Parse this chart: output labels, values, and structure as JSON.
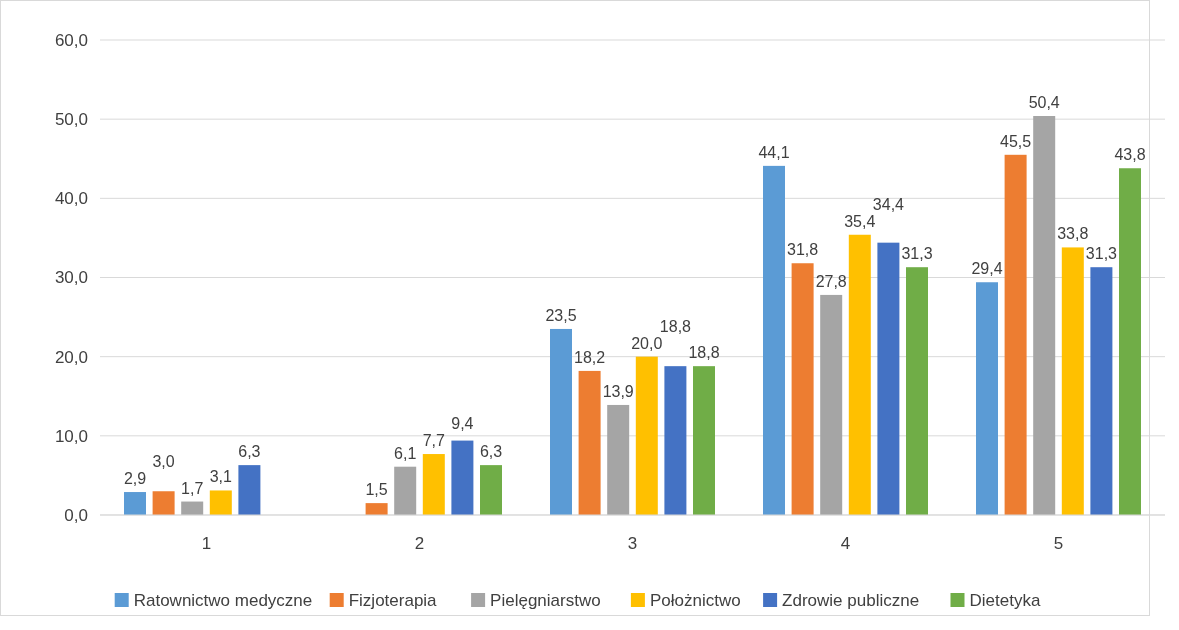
{
  "chart_data": {
    "type": "bar",
    "categories": [
      "1",
      "2",
      "3",
      "4",
      "5"
    ],
    "series": [
      {
        "name": "Ratownictwo medyczne",
        "color": "#5b9bd5",
        "values": [
          2.9,
          null,
          23.5,
          44.1,
          29.4
        ],
        "value_labels": [
          "2,9",
          null,
          "23,5",
          "44,1",
          "29,4"
        ]
      },
      {
        "name": "Fizjoterapia",
        "color": "#ed7d31",
        "values": [
          3.0,
          1.5,
          18.2,
          31.8,
          45.5
        ],
        "value_labels": [
          "3,0",
          "1,5",
          "18,2",
          "31,8",
          "45,5"
        ]
      },
      {
        "name": "Pielęgniarstwo",
        "color": "#a5a5a5",
        "values": [
          1.7,
          6.1,
          13.9,
          27.8,
          50.4
        ],
        "value_labels": [
          "1,7",
          "6,1",
          "13,9",
          "27,8",
          "50,4"
        ]
      },
      {
        "name": "Położnictwo",
        "color": "#ffc000",
        "values": [
          3.1,
          7.7,
          20.0,
          35.4,
          33.8
        ],
        "value_labels": [
          "3,1",
          "7,7",
          "20,0",
          "35,4",
          "33,8"
        ]
      },
      {
        "name": "Zdrowie publiczne",
        "color": "#4472c4",
        "values": [
          6.3,
          9.4,
          18.8,
          34.4,
          31.3
        ],
        "value_labels": [
          "6,3",
          "9,4",
          "18,8",
          "34,4",
          "31,3"
        ]
      },
      {
        "name": "Dietetyka",
        "color": "#70ad47",
        "values": [
          null,
          6.3,
          18.8,
          31.3,
          43.8
        ],
        "value_labels": [
          null,
          "6,3",
          "18,8",
          "31,3",
          "43,8"
        ]
      }
    ],
    "ylim": [
      0,
      60
    ],
    "yticks": [
      {
        "value": 0,
        "label": "0,0"
      },
      {
        "value": 10,
        "label": "10,0"
      },
      {
        "value": 20,
        "label": "20,0"
      },
      {
        "value": 30,
        "label": "30,0"
      },
      {
        "value": 40,
        "label": "40,0"
      },
      {
        "value": 50,
        "label": "50,0"
      },
      {
        "value": 60,
        "label": "60,0"
      }
    ],
    "grid": "y",
    "legend": "bottom"
  }
}
